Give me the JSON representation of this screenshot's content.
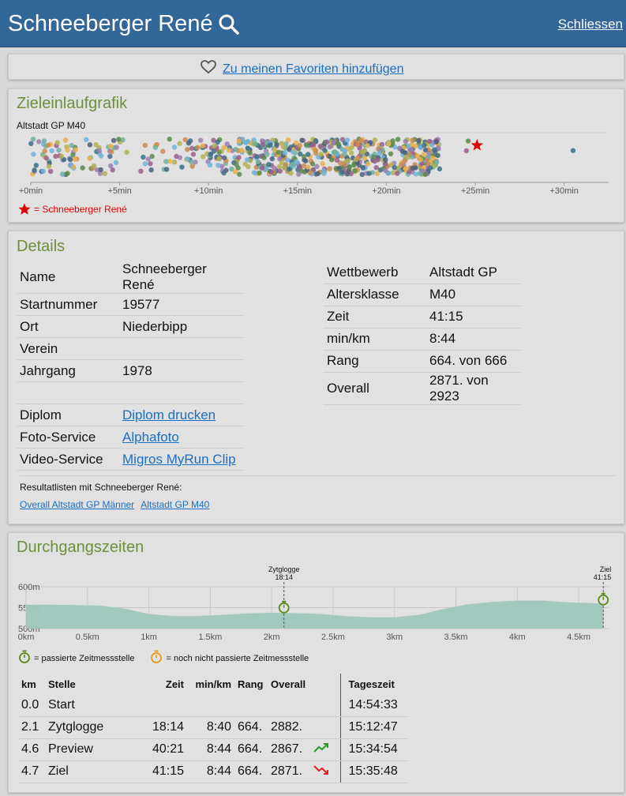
{
  "header": {
    "title": "Schneeberger René",
    "close_label": "Schliessen"
  },
  "favorites": {
    "label": "Zu meinen Favoriten hinzufügen"
  },
  "finish_chart": {
    "section_title": "Zieleinlaufgrafik",
    "subtitle": "Altstadt GP M40",
    "legend": "= Schneeberger René",
    "highlight_color": "#e00000"
  },
  "chart_data": [
    {
      "type": "scatter",
      "title": "Altstadt GP M40",
      "xlabel": "",
      "ylabel": "",
      "x_ticks": [
        "+0min",
        "+5min",
        "+10min",
        "+15min",
        "+20min",
        "+25min",
        "+30min"
      ],
      "xlim": [
        0,
        32.5
      ],
      "n_points": 666,
      "highlight": {
        "name": "Schneeberger René",
        "x": 25.1
      },
      "series": [
        {
          "name": "Schneeberger René",
          "x": [
            25.1
          ]
        }
      ],
      "point_colors": [
        "#6fb3d9",
        "#e8b04a",
        "#5a8a4a",
        "#9a5f8a",
        "#3a6f8a",
        "#b0b050",
        "#70b0a0",
        "#9a7fb0",
        "#c98a50",
        "#4a5f7a"
      ],
      "grid": false
    },
    {
      "type": "area",
      "title": "",
      "xlabel": "",
      "ylabel": "",
      "x": [
        0,
        0.2,
        0.4,
        0.6,
        0.8,
        1.0,
        1.2,
        1.4,
        1.6,
        1.8,
        2.0,
        2.2,
        2.4,
        2.6,
        2.8,
        3.0,
        3.2,
        3.4,
        3.6,
        3.8,
        4.0,
        4.2,
        4.4,
        4.6,
        4.7
      ],
      "y": [
        557,
        557,
        556,
        555,
        548,
        535,
        530,
        530,
        533,
        536,
        538,
        537,
        535,
        530,
        527,
        527,
        533,
        547,
        558,
        564,
        567,
        567,
        563,
        561,
        559
      ],
      "x_ticks": [
        "0km",
        "0.5km",
        "1km",
        "1.5km",
        "2km",
        "2.5km",
        "3km",
        "3.5km",
        "4km",
        "4.5km"
      ],
      "y_ticks": [
        "500m",
        "550m",
        "600m"
      ],
      "xlim": [
        0,
        4.75
      ],
      "ylim": [
        500,
        600
      ],
      "markers": [
        {
          "label": "Zytglogge",
          "time": "18:14",
          "km": 2.1
        },
        {
          "label": "Ziel",
          "time": "41:15",
          "km": 4.7
        }
      ],
      "fill_color": "#9fc7bd",
      "grid": true
    }
  ],
  "details": {
    "section_title": "Details",
    "left": [
      {
        "key": "Name",
        "value": "Schneeberger René"
      },
      {
        "key": "Startnummer",
        "value": "19577"
      },
      {
        "key": "Ort",
        "value": "Niederbipp"
      },
      {
        "key": "Verein",
        "value": ""
      },
      {
        "key": "Jahrgang",
        "value": "1978"
      },
      {
        "key": "",
        "value": ""
      }
    ],
    "links": [
      {
        "key": "Diplom",
        "value": "Diplom drucken"
      },
      {
        "key": "Foto-Service",
        "value": "Alphafoto"
      },
      {
        "key": "Video-Service",
        "value": "Migros MyRun Clip"
      }
    ],
    "right": [
      {
        "key": "Wettbewerb",
        "value": "Altstadt GP"
      },
      {
        "key": "Altersklasse",
        "value": "M40"
      },
      {
        "key": "Zeit",
        "value": "41:15"
      },
      {
        "key": "min/km",
        "value": "8:44"
      },
      {
        "key": "Rang",
        "value": "664. von 666"
      },
      {
        "key": "Overall",
        "value": "2871. von 2923"
      }
    ],
    "result_lists_title": "Resultatlisten mit Schneeberger René:",
    "result_lists": [
      "Overall Altstadt GP Männer",
      "Altstadt GP M40"
    ]
  },
  "splits": {
    "section_title": "Durchgangszeiten",
    "legend_passed": "= passierte Zeitmessstelle",
    "legend_not_passed": "= noch nicht passierte Zeitmessstelle",
    "passed_color": "#5a8a1a",
    "not_passed_color": "#e89a1a",
    "headers": {
      "km": "km",
      "stelle": "Stelle",
      "zeit": "Zeit",
      "minkm": "min/km",
      "rang": "Rang",
      "overall": "Overall",
      "tageszeit": "Tageszeit"
    },
    "rows": [
      {
        "km": "0.0",
        "stelle": "Start",
        "zeit": "",
        "minkm": "",
        "rang": "",
        "overall": "",
        "trend": "",
        "tageszeit": "14:54:33"
      },
      {
        "km": "2.1",
        "stelle": "Zytglogge",
        "zeit": "18:14",
        "minkm": "8:40",
        "rang": "664.",
        "overall": "2882.",
        "trend": "",
        "tageszeit": "15:12:47"
      },
      {
        "km": "4.6",
        "stelle": "Preview",
        "zeit": "40:21",
        "minkm": "8:44",
        "rang": "664.",
        "overall": "2867.",
        "trend": "up",
        "tageszeit": "15:34:54"
      },
      {
        "km": "4.7",
        "stelle": "Ziel",
        "zeit": "41:15",
        "minkm": "8:44",
        "rang": "664.",
        "overall": "2871.",
        "trend": "down",
        "tageszeit": "15:35:48"
      }
    ]
  }
}
